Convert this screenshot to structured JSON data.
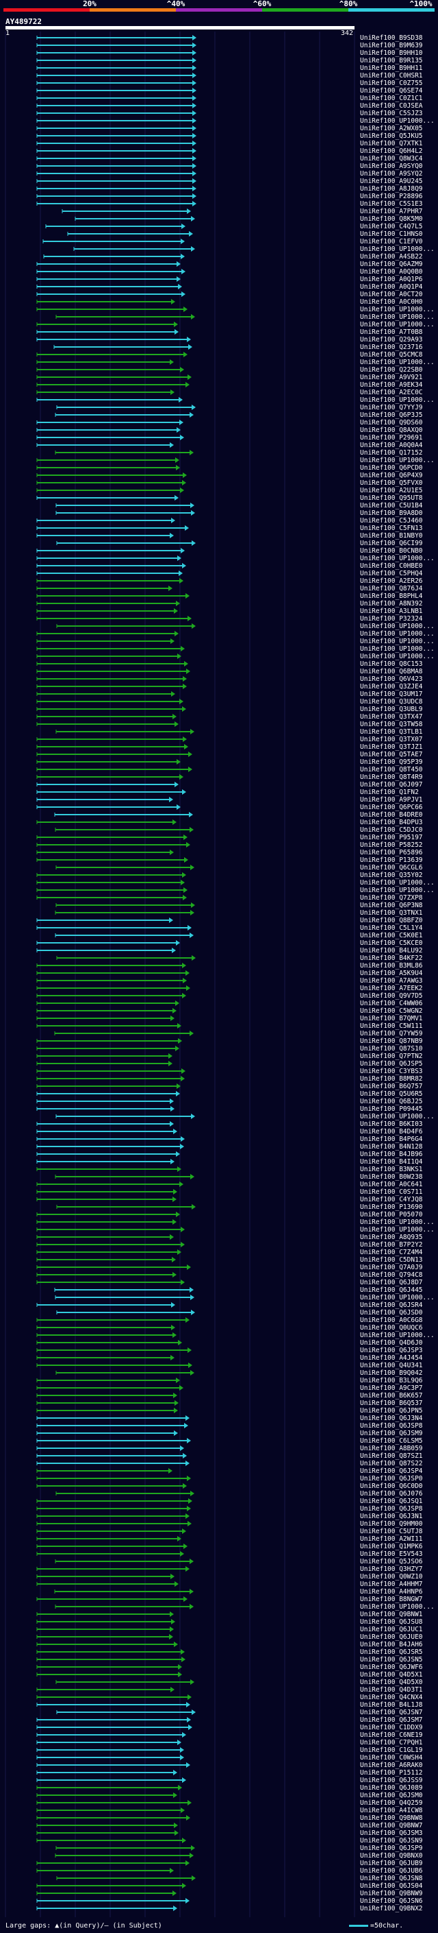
{
  "scale": {
    "labels": [
      "20%",
      "^40%",
      "^60%",
      "^80%",
      "^100%"
    ],
    "colors": [
      "#e8121e",
      "#f07a18",
      "#9b28b8",
      "#1fa81f",
      "#33ccdd"
    ]
  },
  "query": {
    "id": "AY489722",
    "start": "1",
    "end": "342"
  },
  "colors": {
    "cyan": "#33ccdd",
    "green": "#1fa81f",
    "grid": "#18184a",
    "background": "#050522"
  },
  "hits": [
    "UniRef100_B9SD38",
    "UniRef100_B9M639",
    "UniRef100_B9HH10",
    "UniRef100_B9R135",
    "UniRef100_B9HH11",
    "UniRef100_C0HSR1",
    "UniRef100_C0Z755",
    "UniRef100_Q6SE74",
    "UniRef100_C0Z1C1",
    "UniRef100_C0JSEA",
    "UniRef100_C5SJZ3",
    "UniRef100_UP1000...",
    "UniRef100_A2WX05",
    "UniRef100_Q5JKU5",
    "UniRef100_Q7XTK1",
    "UniRef100_Q6H4L2",
    "UniRef100_Q8W3C4",
    "UniRef100_A9SYQ0",
    "UniRef100_A9SYQ2",
    "UniRef100_A9U245",
    "UniRef100_A8J8Q9",
    "UniRef100_P28896",
    "UniRef100_C5S1E3",
    "UniRef100_A7PHR7",
    "UniRef100_Q8K5M0",
    "UniRef100_C4Q7L5",
    "UniRef100_C1HNS0",
    "UniRef100_C1EFV0",
    "UniRef100_UP1000...",
    "UniRef100_A4SB22",
    "UniRef100_Q6AZM9",
    "UniRef100_A0Q0B0",
    "UniRef100_A0Q1P6",
    "UniRef100_A0Q1P4",
    "UniRef100_A0CT20",
    "UniRef100_A0C0H0",
    "UniRef100_UP1000...",
    "UniRef100_UP1000...",
    "UniRef100_UP1000...",
    "UniRef100_A7T0B8",
    "UniRef100_Q29A93",
    "UniRef100_Q23716",
    "UniRef100_Q5CMC8",
    "UniRef100_UP1000...",
    "UniRef100_Q22SB0",
    "UniRef100_A9V921",
    "UniRef100_A9EK34",
    "UniRef100_A2EC0C",
    "UniRef100_UP1000...",
    "UniRef100_Q7YYJ9",
    "UniRef100_Q6P3J5",
    "UniRef100_Q9DS60",
    "UniRef100_Q8AXQ0",
    "UniRef100_P29691",
    "UniRef100_A0Q0A4",
    "UniRef100_Q17152",
    "UniRef100_UP1000...",
    "UniRef100_Q6PCD0",
    "UniRef100_Q6P4X9",
    "UniRef100_Q5FVX0",
    "UniRef100_A2U1E5",
    "UniRef100_Q95UT8",
    "UniRef100_C5U1B4",
    "UniRef100_B9A8D0",
    "UniRef100_C5J460",
    "UniRef100_C5FN13",
    "UniRef100_B1NBY0",
    "UniRef100_Q6CI99",
    "UniRef100_B0CNB0",
    "UniRef100_UP1000...",
    "UniRef100_C0HBE0",
    "UniRef100_C5PHQ4",
    "UniRef100_A2ER26",
    "UniRef100_Q876J4",
    "UniRef100_B8PHL4",
    "UniRef100_A8N392",
    "UniRef100_A3LNB1",
    "UniRef100_P32324",
    "UniRef100_UP1000...",
    "UniRef100_UP1000...",
    "UniRef100_UP1000...",
    "UniRef100_UP1000...",
    "UniRef100_UP1000...",
    "UniRef100_Q8C153",
    "UniRef100_Q6BMA8",
    "UniRef100_Q6V423",
    "UniRef100_Q3ZJE4",
    "UniRef100_Q3UM17",
    "UniRef100_Q3UDC8",
    "UniRef100_Q3UBL9",
    "UniRef100_Q3TX47",
    "UniRef100_Q3TW58",
    "UniRef100_Q3TLB1",
    "UniRef100_Q3TX07",
    "UniRef100_Q3TJZ1",
    "UniRef100_Q5TAE7",
    "UniRef100_Q95P39",
    "UniRef100_Q8T450",
    "UniRef100_Q8T4R9",
    "UniRef100_Q6J097",
    "UniRef100_Q1FN2",
    "UniRef100_A9PJV1",
    "UniRef100_Q6PC66",
    "UniRef100_B4DRE0",
    "UniRef100_B4DPU3",
    "UniRef100_C5DJC0",
    "UniRef100_P95197",
    "UniRef100_P58252",
    "UniRef100_P65896",
    "UniRef100_P13639",
    "UniRef100_Q6CGL6",
    "UniRef100_Q35Y02",
    "UniRef100_UP1000...",
    "UniRef100_UP1000...",
    "UniRef100_Q7ZXP8",
    "UniRef100_Q6P3N8",
    "UniRef100_Q3TNX1",
    "UniRef100_Q8BFZ0",
    "UniRef100_C5L1Y4",
    "UniRef100_C5K0E1",
    "UniRef100_C5KCE0",
    "UniRef100_B4LU92",
    "UniRef100_B4KF22",
    "UniRef100_B3ML86",
    "UniRef100_A5K9U4",
    "UniRef100_A7AWG3",
    "UniRef100_A7EEK2",
    "UniRef100_Q9V7D5",
    "UniRef100_C4WW06",
    "UniRef100_C5WGN2",
    "UniRef100_B7QMV1",
    "UniRef100_C5W111",
    "UniRef100_Q7YW59",
    "UniRef100_Q87NB9",
    "UniRef100_Q87S10",
    "UniRef100_Q7PTN2",
    "UniRef100_Q6JSP5",
    "UniRef100_C3YBS3",
    "UniRef100_B8MR82",
    "UniRef100_B6Q757",
    "UniRef100_Q5U6R5",
    "UniRef100_Q6BJ25",
    "UniRef100_P09445",
    "UniRef100_UP1000...",
    "UniRef100_B6KI03",
    "UniRef100_B4D4F6",
    "UniRef100_B4P6G4",
    "UniRef100_B4N128",
    "UniRef100_B4JB96",
    "UniRef100_B4I1Q4",
    "UniRef100_B3NKS1",
    "UniRef100_B0W238",
    "UniRef100_A0C641",
    "UniRef100_C0S711",
    "UniRef100_C4YJQ8",
    "UniRef100_P13690",
    "UniRef100_P05070",
    "UniRef100_UP1000...",
    "UniRef100_UP1000...",
    "UniRef100_A8Q935",
    "UniRef100_B7P2Y2",
    "UniRef100_C7Z4M4",
    "UniRef100_C5DN13",
    "UniRef100_Q7A0J9",
    "UniRef100_Q794C8",
    "UniRef100_Q6J8D7",
    "UniRef100_Q6J445",
    "UniRef100_UP1000...",
    "UniRef100_Q6JSR4",
    "UniRef100_Q6JSD0",
    "UniRef100_A0C6G8",
    "UniRef100_Q0UQC6",
    "UniRef100_UP1000...",
    "UniRef100_Q4D6J0",
    "UniRef100_Q6JSP3",
    "UniRef100_A4J454",
    "UniRef100_Q4U341",
    "UniRef100_B9Q042",
    "UniRef100_B3L9Q6",
    "UniRef100_A9C3P7",
    "UniRef100_B6K657",
    "UniRef100_B6Q537",
    "UniRef100_Q6JPN5",
    "UniRef100_Q6J3N4",
    "UniRef100_Q6JSP8",
    "UniRef100_Q6JSM9",
    "UniRef100_C6LSM5",
    "UniRef100_A8B059",
    "UniRef100_Q87SZ1",
    "UniRef100_Q87S22",
    "UniRef100_Q6JSP4",
    "UniRef100_Q6JSP0",
    "UniRef100_Q6C0D0",
    "UniRef100_Q6J076",
    "UniRef100_Q6JSQ1",
    "UniRef100_Q6JSP8",
    "UniRef100_Q6J3N1",
    "UniRef100_Q9HM00",
    "UniRef100_C5UTJ8",
    "UniRef100_A2WI11",
    "UniRef100_Q1MPK6",
    "UniRef100_E5V543",
    "UniRef100_Q5JSO6",
    "UniRef100_Q3HZY7",
    "UniRef100_Q0WZ10",
    "UniRef100_A4HHM7",
    "UniRef100_A4HNP6",
    "UniRef100_B8NGW7",
    "UniRef100_UP1000...",
    "UniRef100_Q9BNW1",
    "UniRef100_Q6JSU8",
    "UniRef100_Q6JUC1",
    "UniRef100_Q6JUE0",
    "UniRef100_B4JAH6",
    "UniRef100_Q6JSR5",
    "UniRef100_Q6JSN5",
    "UniRef100_Q6JWF6",
    "UniRef100_Q4D5X1",
    "UniRef100_Q4D5X0",
    "UniRef100_Q4D3T1",
    "UniRef100_Q4CNX4",
    "UniRef100_B4L1J8",
    "UniRef100_Q6JSN7",
    "UniRef100_Q6JSM7",
    "UniRef100_C1DDX9",
    "UniRef100_C6NE19",
    "UniRef100_C7PQH1",
    "UniRef100_C1GL19",
    "UniRef100_C0WSH4",
    "UniRef100_A6RAK0",
    "UniRef100_P15112",
    "UniRef100_Q6JSS9",
    "UniRef100_Q6J089",
    "UniRef100_Q6JSM0",
    "UniRef100_Q4Q259",
    "UniRef100_A4ICW8",
    "UniRef100_Q9BNW8",
    "UniRef100_Q9BNW7",
    "UniRef100_Q6JSM3",
    "UniRef100_Q6JSN9",
    "UniRef100_Q6JSP9",
    "UniRef100_Q9BNX0",
    "UniRef100_Q6JUB9",
    "UniRef100_Q6JUB6",
    "UniRef100_Q6JSN8",
    "UniRef100_Q6JS04",
    "UniRef100_Q9BNW9",
    "UniRef100_Q6JSN6",
    "UniRef100_Q9BNX2"
  ],
  "footer": {
    "left": "Large gaps: ▲(in Query)/— (in Subject)",
    "right": "=50char."
  }
}
